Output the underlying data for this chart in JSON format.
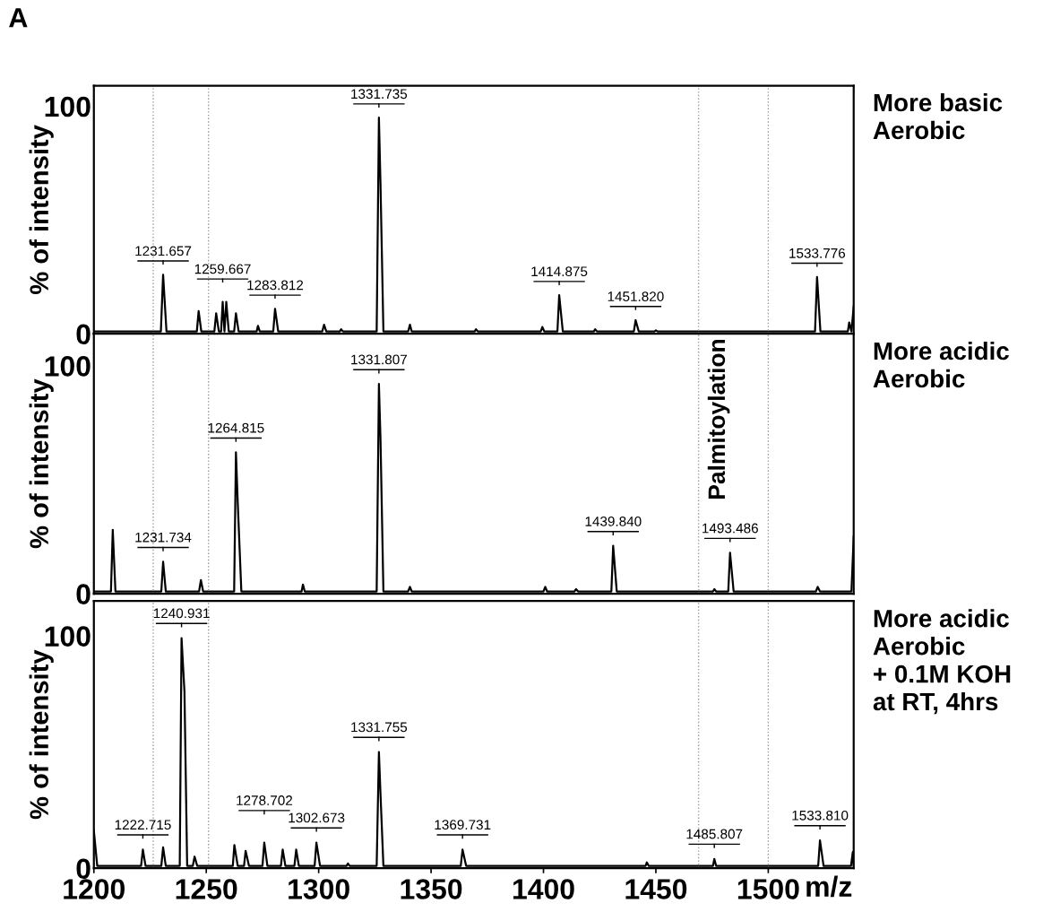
{
  "chart_data": [
    {
      "type": "line",
      "ylabel": "% of intensity",
      "xlim": [
        1200,
        1538
      ],
      "ylim": [
        0,
        109
      ],
      "yticks": [
        0,
        100
      ],
      "tick_labels": "y",
      "grid": false,
      "legend": false,
      "annotations": [
        "A",
        "More basic\nAerobic",
        {
          "text": "1231.657",
          "x": 1230.8,
          "y": 26
        },
        {
          "text": "1259.667",
          "x": 1257.3,
          "y": 14
        },
        {
          "text": "1283.812",
          "x": 1280.6,
          "y": 11
        },
        {
          "text": "1331.735",
          "x": 1326.8,
          "y": 95
        },
        {
          "text": "1414.875",
          "x": 1407,
          "y": 17
        },
        {
          "text": "1451.820",
          "x": 1441,
          "y": 6
        },
        {
          "text": "1533.776",
          "x": 1521.7,
          "y": 25
        }
      ],
      "ref_lines": [
        {
          "axis": "x",
          "value": 1226.4,
          "label": null,
          "color": "#999999",
          "line_style": "dotted"
        },
        {
          "axis": "x",
          "value": 1251,
          "label": null,
          "color": "#999999",
          "line_style": "dotted"
        },
        {
          "axis": "x",
          "value": 1469,
          "label": null,
          "color": "#999999",
          "line_style": "dotted"
        },
        {
          "axis": "x",
          "value": 1500,
          "label": null,
          "color": "#999999",
          "line_style": "dotted"
        }
      ],
      "series": [
        {
          "color": "#000000",
          "x": [
            1200,
            1229.8,
            1230.8,
            1232.3,
            1245.8,
            1246.6,
            1247.8,
            1253.6,
            1254.4,
            1255.6,
            1256.6,
            1257.3,
            1258.1,
            1258.9,
            1260,
            1262.4,
            1263.2,
            1264.4,
            1272.4,
            1273,
            1273.8,
            1279.8,
            1280.6,
            1282,
            1301.6,
            1302.4,
            1303.4,
            1309.4,
            1310,
            1310.8,
            1325.8,
            1326.8,
            1327.5,
            1328.8,
            1339.8,
            1340.6,
            1341.4,
            1369.4,
            1370,
            1370.8,
            1398.8,
            1399.5,
            1400.4,
            1406.2,
            1407,
            1408.6,
            1422.4,
            1423,
            1423.8,
            1440.2,
            1441,
            1442.4,
            1449.4,
            1450,
            1450.8,
            1520.8,
            1521.7,
            1523.2,
            1535.4,
            1536,
            1537,
            1538
          ],
          "values": [
            1,
            1,
            26,
            1,
            1,
            10,
            1,
            1,
            9,
            1,
            1,
            14,
            1,
            14,
            1,
            1,
            9,
            1,
            1,
            3.5,
            1,
            1,
            11,
            1,
            1,
            4,
            1,
            1,
            2,
            1,
            1,
            95,
            66,
            1,
            1,
            4,
            1,
            1,
            2,
            1,
            1,
            3,
            1,
            1,
            17,
            1,
            1,
            2,
            1,
            1,
            6,
            1,
            1,
            1.5,
            1,
            1,
            25,
            1,
            1,
            5,
            1,
            12
          ]
        }
      ]
    },
    {
      "type": "line",
      "ylabel": "% of intensity",
      "xlim": [
        1200,
        1538
      ],
      "ylim": [
        0,
        114
      ],
      "yticks": [
        0,
        100
      ],
      "tick_labels": "y",
      "grid": false,
      "legend": false,
      "annotations": [
        "More acidic\nAerobic",
        {
          "text": "1231.734",
          "x": 1230.8,
          "y": 14
        },
        {
          "text": "1264.815",
          "x": 1263.2,
          "y": 62
        },
        {
          "text": "1331.807",
          "x": 1326.8,
          "y": 92
        },
        {
          "text": "1439.840",
          "x": 1431,
          "y": 21
        },
        {
          "text": "1493.486",
          "x": 1483,
          "y": 18
        }
      ],
      "ref_lines": [
        {
          "axis": "x",
          "value": 1226.4,
          "label": null,
          "color": "#999999",
          "line_style": "dotted"
        },
        {
          "axis": "x",
          "value": 1251,
          "label": null,
          "color": "#999999",
          "line_style": "dotted"
        },
        {
          "axis": "x",
          "value": 1469,
          "label": "Palmitoylation",
          "color": "#999999",
          "line_style": "dotted"
        },
        {
          "axis": "x",
          "value": 1500,
          "label": null,
          "color": "#999999",
          "line_style": "dotted"
        }
      ],
      "series": [
        {
          "color": "#000000",
          "x": [
            1200,
            1207.6,
            1208.4,
            1209.6,
            1230,
            1230.8,
            1232,
            1246.8,
            1247.6,
            1248.6,
            1262.4,
            1263.2,
            1264,
            1265.6,
            1292.4,
            1293,
            1293.8,
            1325.8,
            1326.8,
            1327.5,
            1328.8,
            1339.8,
            1340.6,
            1341.4,
            1400,
            1400.8,
            1401.6,
            1413.8,
            1414.5,
            1415.4,
            1430.2,
            1431,
            1432.6,
            1475.4,
            1476,
            1476.8,
            1482.2,
            1483,
            1484.6,
            1521.2,
            1522,
            1523,
            1537,
            1538
          ],
          "values": [
            1,
            1,
            28,
            1,
            1,
            14,
            1,
            1,
            6,
            1,
            1,
            62,
            40,
            1,
            1,
            4,
            1,
            1,
            92,
            68,
            1,
            1,
            3,
            1,
            1,
            3,
            1,
            1,
            2,
            1,
            1,
            21,
            1,
            1,
            2,
            1,
            1,
            18,
            1,
            1,
            3,
            1,
            1,
            25
          ]
        }
      ]
    },
    {
      "type": "line",
      "ylabel": "% of intensity",
      "xlabel": "m/z",
      "xlim": [
        1200,
        1538
      ],
      "ylim": [
        0,
        115
      ],
      "yticks": [
        0,
        100
      ],
      "xticks": [
        1200,
        1250,
        1300,
        1350,
        1400,
        1450,
        1500
      ],
      "grid": false,
      "legend": false,
      "annotations": [
        "More acidic\nAerobic\n+ 0.1M KOH\nat RT, 4hrs",
        {
          "text": "1222.715",
          "x": 1221.8,
          "y": 8
        },
        {
          "text": "1240.931",
          "x": 1239,
          "y": 99
        },
        {
          "text": "1278.702",
          "x": 1275.8,
          "y": 11
        },
        {
          "text": "1302.673",
          "x": 1299,
          "y": 11
        },
        {
          "text": "1331.755",
          "x": 1326.8,
          "y": 50
        },
        {
          "text": "1369.731",
          "x": 1364,
          "y": 8
        },
        {
          "text": "1485.807",
          "x": 1476,
          "y": 4
        },
        {
          "text": "1533.810",
          "x": 1523,
          "y": 12
        }
      ],
      "ref_lines": [
        {
          "axis": "x",
          "value": 1226.4,
          "label": null,
          "color": "#999999",
          "line_style": "dotted"
        },
        {
          "axis": "x",
          "value": 1251,
          "label": null,
          "color": "#999999",
          "line_style": "dotted"
        },
        {
          "axis": "x",
          "value": 1469,
          "label": null,
          "color": "#999999",
          "line_style": "dotted"
        },
        {
          "axis": "x",
          "value": 1500,
          "label": null,
          "color": "#999999",
          "line_style": "dotted"
        }
      ],
      "series": [
        {
          "color": "#000000",
          "x": [
            1200,
            1201.5,
            1221,
            1221.8,
            1223,
            1230,
            1230.8,
            1232,
            1238.2,
            1239,
            1240.3,
            1241.5,
            1244,
            1244.8,
            1246,
            1261.8,
            1262.5,
            1264,
            1266.8,
            1267.5,
            1269,
            1275,
            1275.8,
            1277.2,
            1283.2,
            1284,
            1285.2,
            1289.2,
            1290,
            1291.2,
            1298.2,
            1299,
            1300.6,
            1312.4,
            1313,
            1313.8,
            1325.8,
            1326.8,
            1327.5,
            1328.8,
            1363.2,
            1364,
            1365.6,
            1445.4,
            1446,
            1446.8,
            1475.4,
            1476,
            1476.8,
            1522.2,
            1523,
            1524.6,
            1536.8,
            1537.6,
            1538
          ],
          "values": [
            16,
            1,
            1,
            8,
            1,
            1,
            9,
            1,
            1,
            99,
            76,
            1,
            1,
            5,
            1,
            1,
            10,
            1,
            1,
            7.5,
            1,
            1,
            11,
            1,
            1,
            8,
            1,
            1,
            8,
            1,
            1,
            11,
            1,
            1,
            2,
            1,
            1,
            50,
            32,
            1,
            1,
            8,
            1,
            1,
            2.5,
            1,
            1,
            4,
            1,
            1,
            12,
            1,
            1,
            7,
            1
          ]
        }
      ]
    }
  ]
}
